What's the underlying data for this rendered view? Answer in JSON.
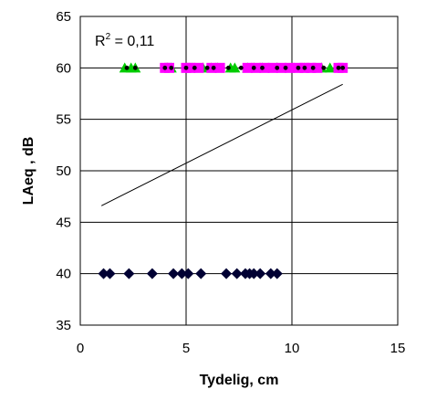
{
  "chart_data": {
    "type": "scatter",
    "title": "",
    "xlabel": "Tydelig, cm",
    "ylabel": "LAeq , dB",
    "xlim": [
      0,
      15
    ],
    "ylim": [
      35,
      65
    ],
    "x_ticks": [
      0,
      5,
      10,
      15
    ],
    "y_ticks": [
      35,
      40,
      45,
      50,
      55,
      60,
      65
    ],
    "grid": true,
    "legend": "none",
    "annotation": {
      "base": "R",
      "sup": "2",
      "rest": " = 0,11"
    },
    "series": [
      {
        "marker": "diamond",
        "color": "#000033",
        "points": [
          [
            1.1,
            40
          ],
          [
            1.4,
            40
          ],
          [
            2.3,
            40
          ],
          [
            3.4,
            40
          ],
          [
            4.4,
            40
          ],
          [
            4.8,
            40
          ],
          [
            5.1,
            40
          ],
          [
            5.7,
            40
          ],
          [
            6.9,
            40
          ],
          [
            7.4,
            40
          ],
          [
            7.8,
            40
          ],
          [
            8.0,
            40
          ],
          [
            8.2,
            40
          ],
          [
            8.5,
            40
          ],
          [
            9.0,
            40
          ],
          [
            9.3,
            40
          ]
        ]
      },
      {
        "marker": "triangle",
        "color": "#00CC00",
        "points": [
          [
            2.1,
            60
          ],
          [
            2.4,
            60
          ],
          [
            2.6,
            60
          ],
          [
            4.1,
            60
          ],
          [
            4.3,
            60
          ],
          [
            5.3,
            60
          ],
          [
            5.8,
            60
          ],
          [
            6.2,
            60
          ],
          [
            6.5,
            60
          ],
          [
            7.1,
            60
          ],
          [
            7.3,
            60
          ],
          [
            7.9,
            60
          ],
          [
            8.2,
            60
          ],
          [
            8.6,
            60
          ],
          [
            9.3,
            60
          ],
          [
            10.6,
            60
          ],
          [
            11.4,
            60
          ],
          [
            11.8,
            60
          ]
        ]
      },
      {
        "marker": "square",
        "color": "#FF00FF",
        "points": [
          [
            4.0,
            60
          ],
          [
            4.2,
            60
          ],
          [
            5.0,
            60
          ],
          [
            5.2,
            60
          ],
          [
            5.6,
            60
          ],
          [
            6.2,
            60
          ],
          [
            6.6,
            60
          ],
          [
            7.9,
            60
          ],
          [
            8.3,
            60
          ],
          [
            8.7,
            60
          ],
          [
            9.1,
            60
          ],
          [
            9.5,
            60
          ],
          [
            9.9,
            60
          ],
          [
            10.3,
            60
          ],
          [
            10.6,
            60
          ],
          [
            10.9,
            60
          ],
          [
            11.2,
            60
          ],
          [
            12.2,
            60
          ],
          [
            12.4,
            60
          ]
        ]
      },
      {
        "marker": "dot",
        "color": "#000000",
        "points": [
          [
            2.2,
            60
          ],
          [
            2.6,
            60
          ],
          [
            4.0,
            60
          ],
          [
            4.3,
            60
          ],
          [
            5.0,
            60
          ],
          [
            5.4,
            60
          ],
          [
            6.0,
            60
          ],
          [
            6.3,
            60
          ],
          [
            7.0,
            60
          ],
          [
            7.6,
            60
          ],
          [
            8.2,
            60
          ],
          [
            8.6,
            60
          ],
          [
            9.3,
            60
          ],
          [
            9.7,
            60
          ],
          [
            10.3,
            60
          ],
          [
            10.6,
            60
          ],
          [
            11.0,
            60
          ],
          [
            11.5,
            60
          ],
          [
            12.2,
            60
          ],
          [
            12.4,
            60
          ]
        ]
      }
    ],
    "trendline": {
      "x": [
        1.0,
        12.4
      ],
      "y": [
        46.6,
        58.4
      ],
      "color": "#000000"
    }
  }
}
